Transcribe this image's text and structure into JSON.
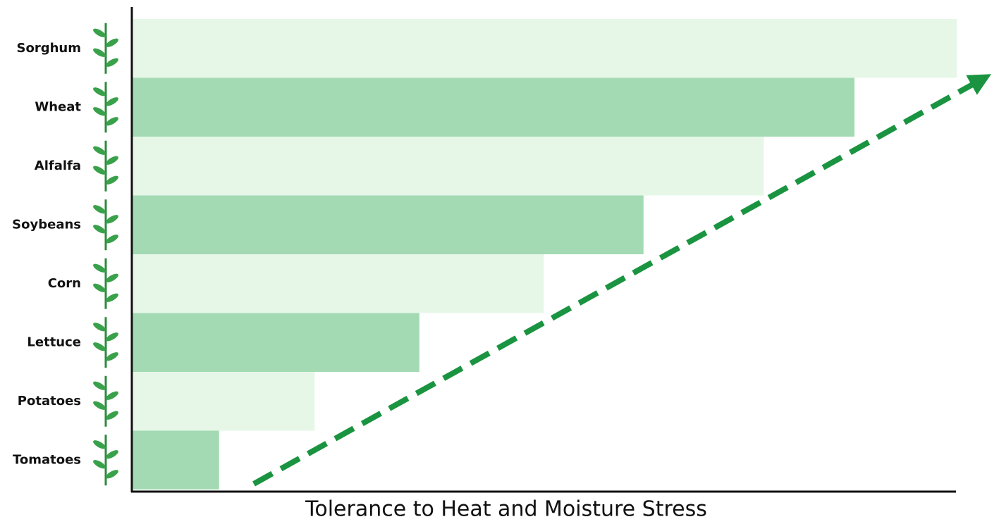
{
  "chart_data": {
    "type": "bar",
    "orientation": "horizontal",
    "x_axis_label": "Tolerance to Heat and Moisture Stress",
    "categories": [
      "Sorghum",
      "Wheat",
      "Alfalfa",
      "Soybeans",
      "Corn",
      "Lettuce",
      "Potatoes",
      "Tomatoes"
    ],
    "values": [
      100,
      87.6,
      76.6,
      62,
      49.9,
      34.8,
      22.1,
      10.5
    ],
    "colors": [
      "#e6f7e8",
      "#a3dab3",
      "#e6f7e8",
      "#a3dab3",
      "#e6f7e8",
      "#a3dab3",
      "#e6f7e8",
      "#a3dab3"
    ],
    "xlim": [
      0,
      100
    ]
  }
}
